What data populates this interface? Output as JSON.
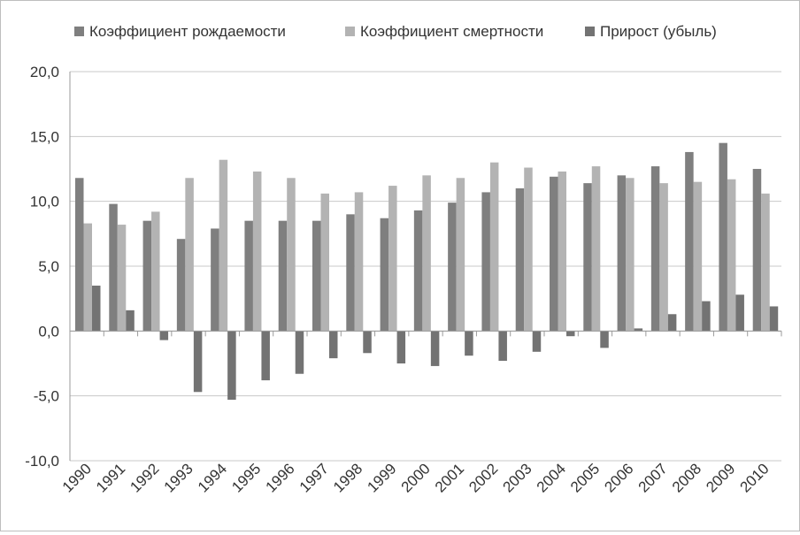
{
  "chart_data": {
    "type": "bar",
    "title": "",
    "xlabel": "",
    "ylabel": "",
    "categories": [
      "1990",
      "1991",
      "1992",
      "1993",
      "1994",
      "1995",
      "1996",
      "1997",
      "1998",
      "1999",
      "2000",
      "2001",
      "2002",
      "2003",
      "2004",
      "2005",
      "2006",
      "2007",
      "2008",
      "2009",
      "2010"
    ],
    "ylim": [
      -10,
      20
    ],
    "yticks": [
      "20,0",
      "15,0",
      "10,0",
      "5,0",
      "0,0",
      "-5,0",
      "-10,0"
    ],
    "grid": true,
    "legend_position": "top",
    "series": [
      {
        "name": "Коэффициент рождаемости",
        "color": "#7f7f7f",
        "values": [
          11.8,
          9.8,
          8.5,
          7.1,
          7.9,
          8.5,
          8.5,
          8.5,
          9.0,
          8.7,
          9.3,
          9.9,
          10.7,
          11.0,
          11.9,
          11.4,
          12.0,
          12.7,
          13.8,
          14.5,
          12.5
        ]
      },
      {
        "name": "Коэффициент смертности",
        "color": "#b3b3b3",
        "values": [
          8.3,
          8.2,
          9.2,
          11.8,
          13.2,
          12.3,
          11.8,
          10.6,
          10.7,
          11.2,
          12.0,
          11.8,
          13.0,
          12.6,
          12.3,
          12.7,
          11.8,
          11.4,
          11.5,
          11.7,
          10.6
        ]
      },
      {
        "name": "Прирост (убыль)",
        "color": "#737373",
        "values": [
          3.5,
          1.6,
          -0.7,
          -4.7,
          -5.3,
          -3.8,
          -3.3,
          -2.1,
          -1.7,
          -2.5,
          -2.7,
          -1.9,
          -2.3,
          -1.6,
          -0.4,
          -1.3,
          0.2,
          1.3,
          2.3,
          2.8,
          1.9
        ]
      }
    ]
  }
}
